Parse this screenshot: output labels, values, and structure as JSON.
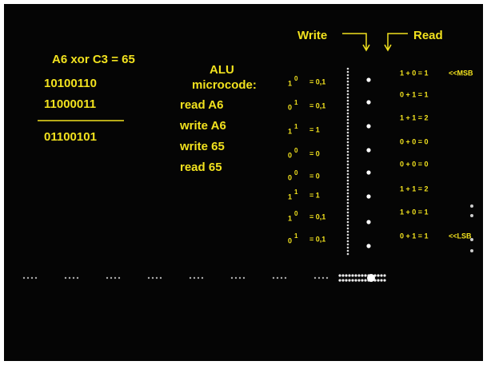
{
  "equation": "A6 xor C3 = 65",
  "binary": {
    "operand_a": "10100110",
    "operand_b": "11000011",
    "result": "01100101"
  },
  "microcode": {
    "heading": [
      "ALU",
      "microcode:"
    ],
    "steps": [
      "read A6",
      "write A6",
      "write 65",
      "read 65"
    ]
  },
  "labels": {
    "write": "Write",
    "read": "Read"
  },
  "write_formulas": [
    {
      "base": "1",
      "exp": "0",
      "result": "= 0,1"
    },
    {
      "base": "0",
      "exp": "1",
      "result": "= 0,1"
    },
    {
      "base": "1",
      "exp": "1",
      "result": "= 1"
    },
    {
      "base": "0",
      "exp": "0",
      "result": "= 0"
    },
    {
      "base": "0",
      "exp": "0",
      "result": "= 0"
    },
    {
      "base": "1",
      "exp": "1",
      "result": "= 1"
    },
    {
      "base": "1",
      "exp": "0",
      "result": "= 0,1"
    },
    {
      "base": "0",
      "exp": "1",
      "result": "= 0,1"
    }
  ],
  "read_sums": [
    {
      "expr": "1 + 0 = 1",
      "note": "<<MSB"
    },
    {
      "expr": "0 + 1 = 1"
    },
    {
      "expr": "1 + 1 = 2"
    },
    {
      "expr": "0 + 0 = 0"
    },
    {
      "expr": "0 + 0 = 0"
    },
    {
      "expr": "1 + 1 = 2"
    },
    {
      "expr": "1 + 0 = 1"
    },
    {
      "expr": "0 + 1 = 1",
      "note": "<<LSB"
    }
  ]
}
